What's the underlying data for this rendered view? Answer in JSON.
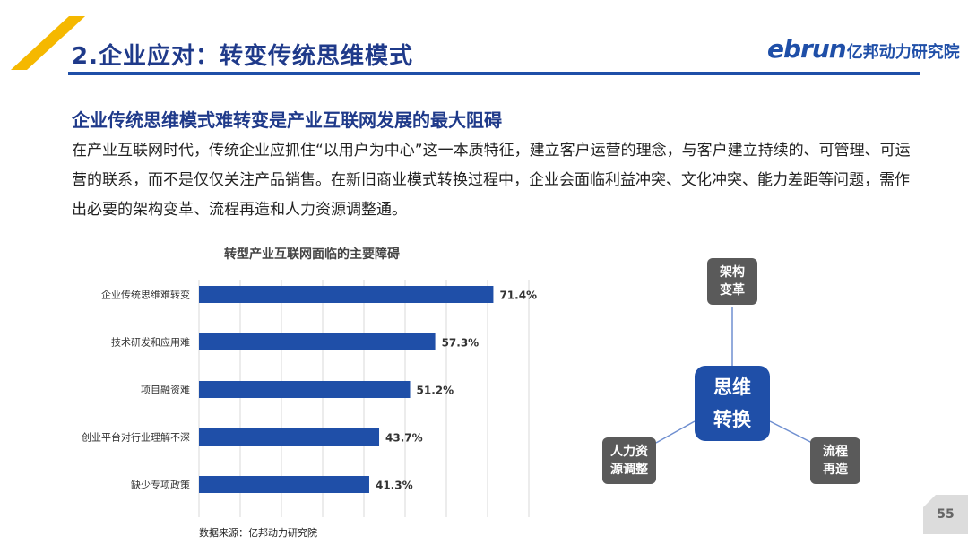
{
  "header": {
    "title": "2.企业应对：转变传统思维模式",
    "logo_mark": "ebrun",
    "logo_name": "亿邦动力研究院"
  },
  "content": {
    "subheading": "企业传统思维模式难转变是产业互联网发展的最大阻碍",
    "body": "在产业互联网时代，传统企业应抓住“以用户为中心”这一本质特征，建立客户运营的理念，与客户建立持续的、可管理、可运营的联系，而不是仅仅关注产品销售。在新旧商业模式转换过程中，企业会面临利益冲突、文化冲突、能力差距等问题，需作出必要的架构变革、流程再造和人力资源调整通。"
  },
  "chart_data": {
    "type": "bar",
    "orientation": "horizontal",
    "title": "转型产业互联网面临的主要障碍",
    "categories": [
      "企业传统思维难转变",
      "技术研发和应用难",
      "项目融资难",
      "创业平台对行业理解不深",
      "缺少专项政策"
    ],
    "values": [
      71.4,
      57.3,
      51.2,
      43.7,
      41.3
    ],
    "value_labels": [
      "71.4%",
      "57.3%",
      "51.2%",
      "43.7%",
      "41.3%"
    ],
    "xlim": [
      0,
      80
    ],
    "grid": true,
    "bar_color": "#1f4fa8"
  },
  "source": "数据来源：亿邦动力研究院",
  "diagram": {
    "center_line1": "思维",
    "center_line2": "转换",
    "top_line1": "架构",
    "top_line2": "变革",
    "left_line1": "人力资",
    "left_line2": "源调整",
    "right_line1": "流程",
    "right_line2": "再造"
  },
  "page_number": "55",
  "colors": {
    "primary": "#1f4fa8",
    "accent": "#f5b800",
    "node_gray": "#5a5a5a"
  }
}
